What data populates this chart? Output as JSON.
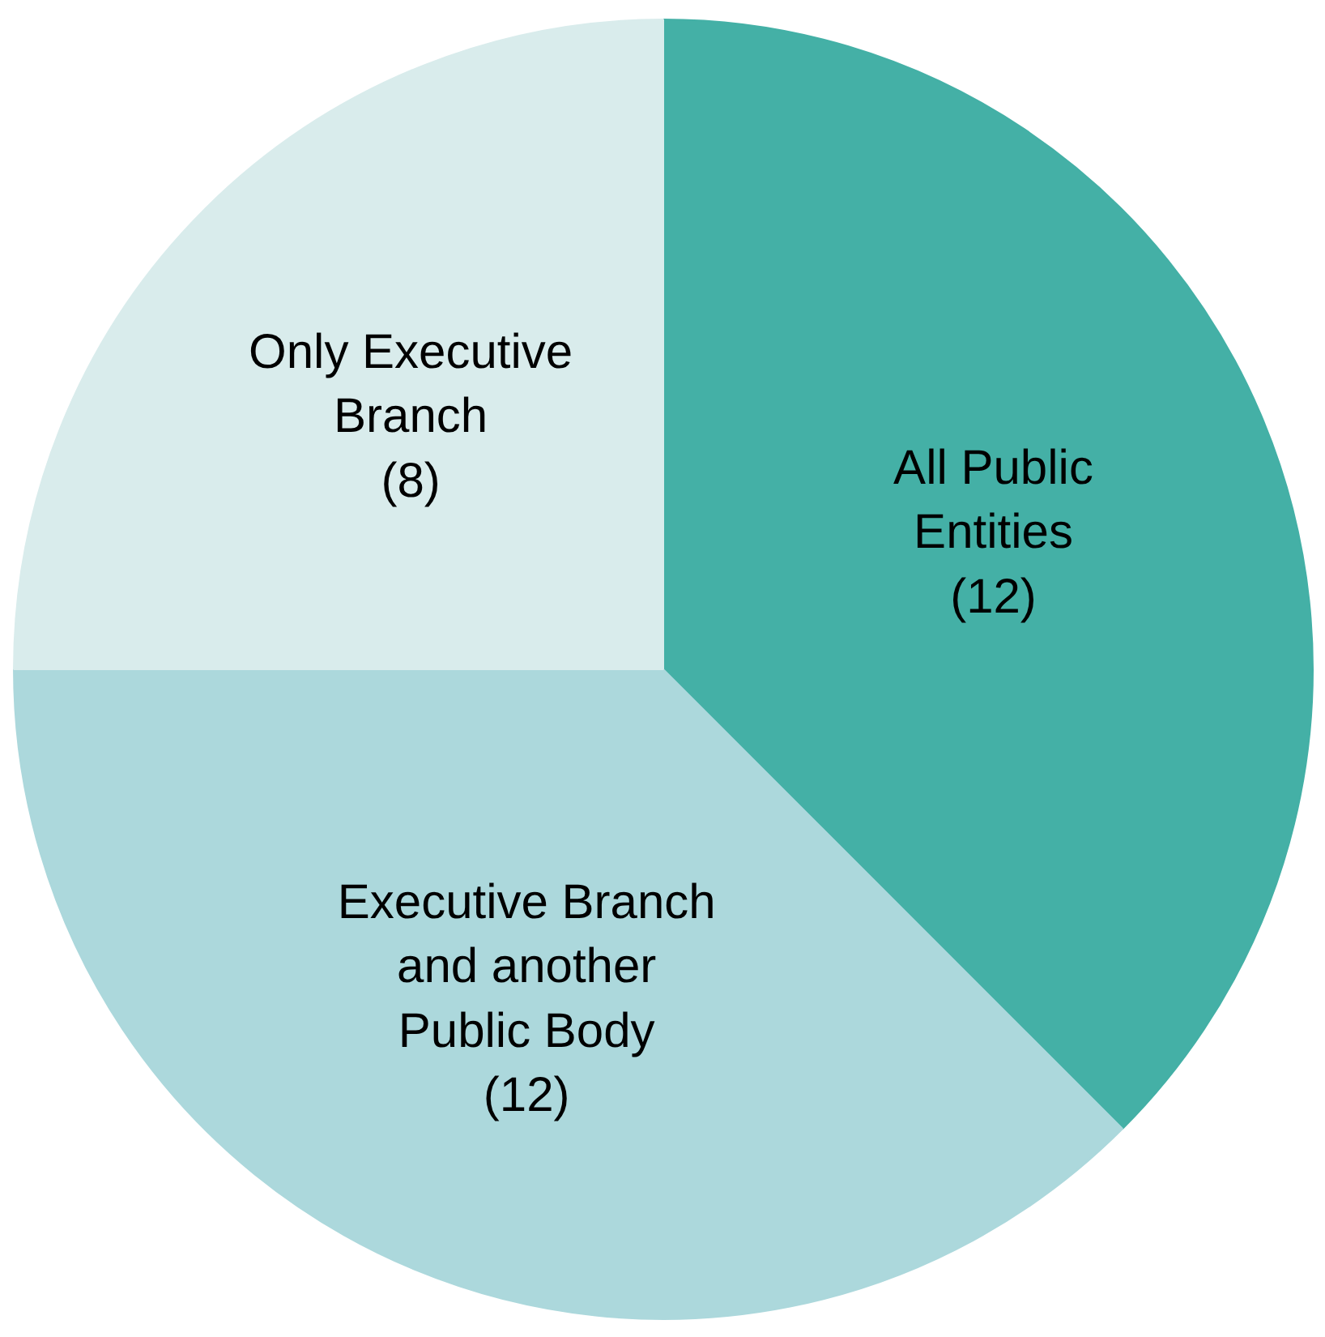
{
  "chart_data": {
    "type": "pie",
    "categories": [
      "All Public Entities",
      "Executive Branch and another Public Body",
      "Only Executive Branch"
    ],
    "values": [
      12,
      12,
      8
    ],
    "colors": [
      "#44b0a6",
      "#acd8dc",
      "#d9ecec"
    ],
    "value_labels": [
      "(12)",
      "(12)",
      "(8)"
    ]
  }
}
